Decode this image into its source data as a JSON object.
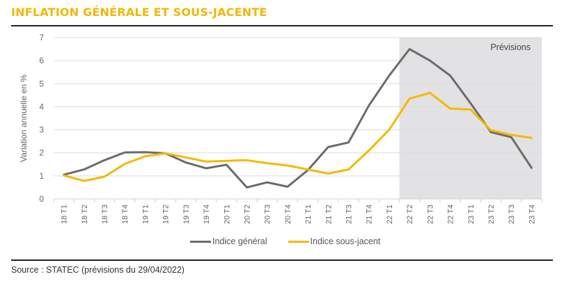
{
  "title": "INFLATION GÉNÉRALE ET SOUS-JACENTE",
  "source": "Source : STATEC (prévisions du 29/04/2022)",
  "forecast_label": "Prévisions",
  "colors": {
    "title": "#f2b705",
    "general": "#6b6b6b",
    "underlying": "#f5b800",
    "forecast_band": "#e2e1e3"
  },
  "legend": {
    "general": "Indice général",
    "underlying": "Indice sous-jacent"
  },
  "chart_data": {
    "type": "line",
    "title": "INFLATION GÉNÉRALE ET SOUS-JACENTE",
    "xlabel": "",
    "ylabel": "Variation annuelle en %",
    "ylim": [
      0,
      7
    ],
    "yticks": [
      0,
      1,
      2,
      3,
      4,
      5,
      6,
      7
    ],
    "grid": true,
    "legend_position": "bottom",
    "categories": [
      "18 T1",
      "18 T2",
      "18 T3",
      "18 T4",
      "19 T1",
      "19 T2",
      "19 T3",
      "19 T4",
      "20 T1",
      "20 T2",
      "20 T3",
      "20 T4",
      "21 T1",
      "21 T2",
      "21 T3",
      "21 T4",
      "22 T1",
      "22 T2",
      "22 T3",
      "22 T4",
      "23 T1",
      "23 T2",
      "23 T3",
      "23 T4"
    ],
    "series": [
      {
        "name": "Indice général",
        "values": [
          1.05,
          1.28,
          1.68,
          2.02,
          2.03,
          1.98,
          1.58,
          1.33,
          1.48,
          0.5,
          0.72,
          0.53,
          1.25,
          2.25,
          2.45,
          4.05,
          5.35,
          6.5,
          6.0,
          5.35,
          4.15,
          2.9,
          2.68,
          1.35
        ]
      },
      {
        "name": "Indice sous-jacent",
        "values": [
          1.02,
          0.78,
          0.97,
          1.52,
          1.85,
          1.98,
          1.8,
          1.62,
          1.65,
          1.68,
          1.55,
          1.45,
          1.28,
          1.1,
          1.28,
          2.1,
          3.0,
          4.35,
          4.6,
          3.92,
          3.88,
          2.98,
          2.78,
          2.65
        ]
      }
    ],
    "annotations": [
      {
        "text": "Prévisions",
        "shaded_from": "22 T2",
        "shaded_to": "23 T4"
      }
    ]
  }
}
